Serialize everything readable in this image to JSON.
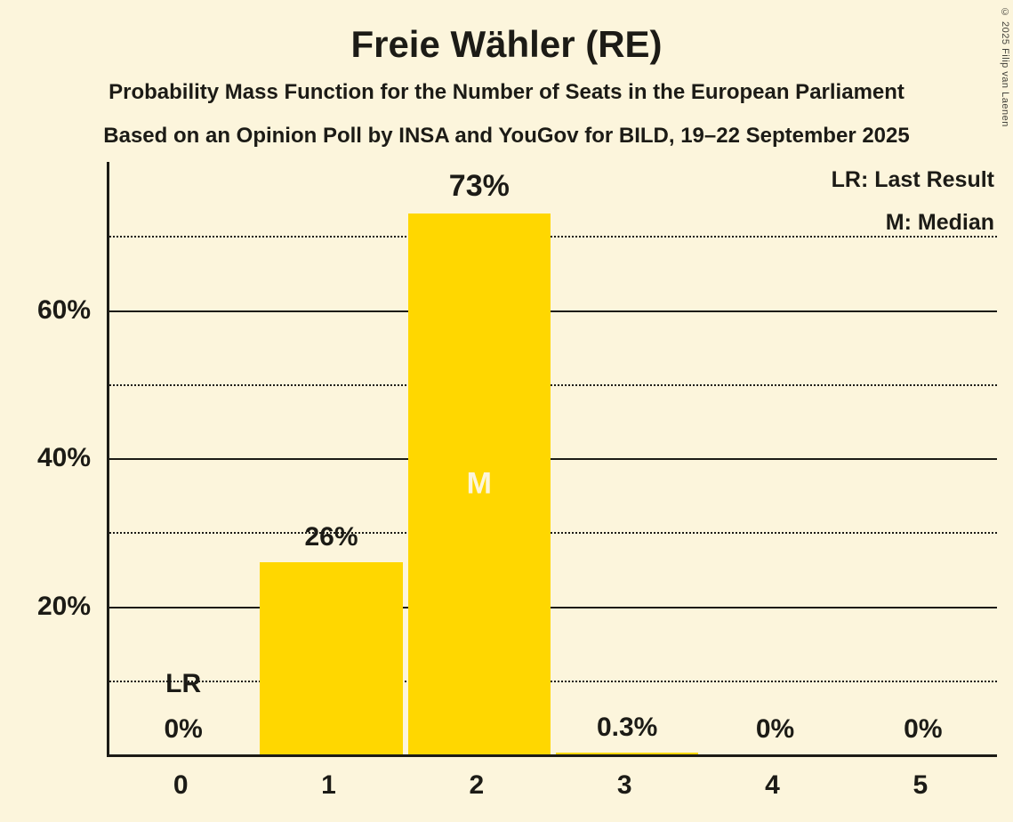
{
  "title": "Freie Wähler (RE)",
  "subtitle1": "Probability Mass Function for the Number of Seats in the European Parliament",
  "subtitle2": "Based on an Opinion Poll by INSA and YouGov for BILD, 19–22 September 2025",
  "copyright": "© 2025 Filip van Laenen",
  "legend": {
    "lr": "LR: Last Result",
    "m": "M: Median"
  },
  "chart_data": {
    "type": "bar",
    "title": "Freie Wähler (RE)",
    "categories": [
      "0",
      "1",
      "2",
      "3",
      "4",
      "5"
    ],
    "values": [
      0,
      26,
      73,
      0.3,
      0,
      0
    ],
    "value_labels": [
      "0%",
      "26%",
      "73%",
      "0.3%",
      "0%",
      "0%"
    ],
    "median_index": 2,
    "median_marker": "M",
    "last_result_index": 0,
    "last_result_marker": "LR",
    "ylim": [
      0,
      80
    ],
    "yticks": [
      20,
      40,
      60
    ],
    "ytick_labels": [
      "20%",
      "40%",
      "60%"
    ],
    "dotted_gridlines": [
      10,
      30,
      50,
      70
    ],
    "legend_position": "top-right",
    "grid": "horizontal",
    "bar_color": "#FFD700",
    "background_color": "#FCF5DC",
    "text_color": "#1C1B16",
    "median_text_color": "#FCF5DC"
  }
}
